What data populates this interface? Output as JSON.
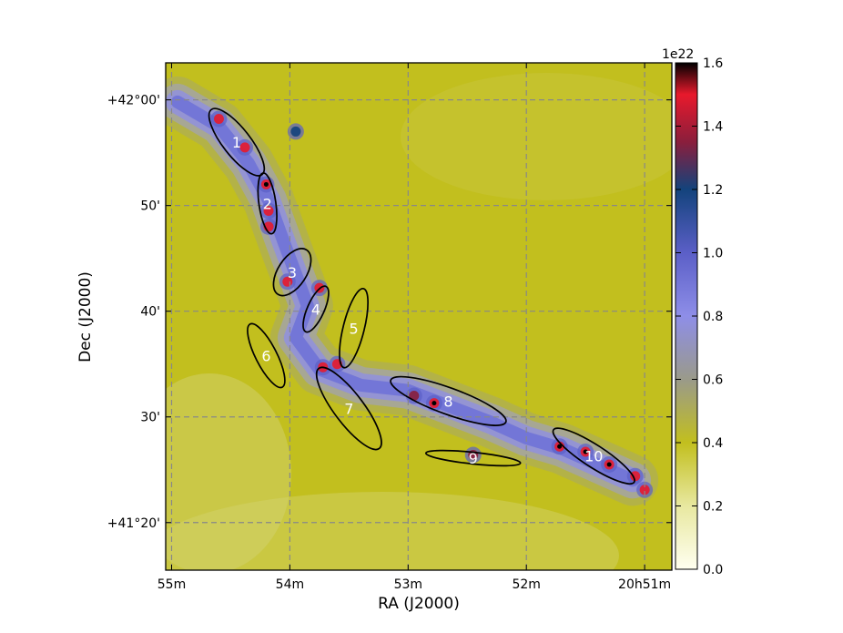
{
  "chart_data": {
    "type": "heatmap",
    "title": "",
    "xlabel": "RA (J2000)",
    "ylabel": "Dec (J2000)",
    "x_ticks": [
      "55m",
      "54m",
      "53m",
      "52m",
      "20h51m"
    ],
    "y_ticks": [
      "+41°20'",
      "30'",
      "40'",
      "50'",
      "+42°00'"
    ],
    "x_tick_values_min": [
      55,
      54,
      53,
      52,
      51
    ],
    "y_tick_values_arcmin": [
      20,
      30,
      40,
      50,
      60
    ],
    "xlim_min": [
      55.05,
      50.77
    ],
    "ylim_arcmin": [
      15.5,
      63.5
    ],
    "grid": true,
    "colorbar": {
      "label": "1e22",
      "vmin": 0.0,
      "vmax": 1.6,
      "ticks": [
        "0.0",
        "0.2",
        "0.4",
        "0.6",
        "0.8",
        "1.0",
        "1.2",
        "1.4",
        "1.6"
      ],
      "tick_values": [
        0.0,
        0.2,
        0.4,
        0.6,
        0.8,
        1.0,
        1.2,
        1.4,
        1.6
      ],
      "stops": [
        {
          "v": 0.0,
          "color": "#fffff0"
        },
        {
          "v": 0.2,
          "color": "#e8e8a0"
        },
        {
          "v": 0.4,
          "color": "#c2bf1e"
        },
        {
          "v": 0.6,
          "color": "#9a9a8a"
        },
        {
          "v": 0.8,
          "color": "#8e8ee8"
        },
        {
          "v": 1.0,
          "color": "#5b5fc7"
        },
        {
          "v": 1.2,
          "color": "#13437c"
        },
        {
          "v": 1.35,
          "color": "#8a1e3c"
        },
        {
          "v": 1.5,
          "color": "#e8192c"
        },
        {
          "v": 1.6,
          "color": "#000000"
        }
      ]
    },
    "regions": [
      {
        "label": "1",
        "ra_min": 54.45,
        "dec_arcmin": 56.0,
        "major_arcmin": 7.8,
        "minor_arcmin": 2.6,
        "pa_deg": 38
      },
      {
        "label": "2",
        "ra_min": 54.19,
        "dec_arcmin": 50.2,
        "major_arcmin": 5.8,
        "minor_arcmin": 1.6,
        "pa_deg": 8
      },
      {
        "label": "3",
        "ra_min": 53.98,
        "dec_arcmin": 43.7,
        "major_arcmin": 5.0,
        "minor_arcmin": 2.7,
        "pa_deg": -33
      },
      {
        "label": "4",
        "ra_min": 53.78,
        "dec_arcmin": 40.2,
        "major_arcmin": 4.7,
        "minor_arcmin": 1.6,
        "pa_deg": -24
      },
      {
        "label": "5",
        "ra_min": 53.46,
        "dec_arcmin": 38.4,
        "major_arcmin": 7.7,
        "minor_arcmin": 2.0,
        "pa_deg": -14
      },
      {
        "label": "6",
        "ra_min": 54.2,
        "dec_arcmin": 35.8,
        "major_arcmin": 6.7,
        "minor_arcmin": 2.0,
        "pa_deg": 27
      },
      {
        "label": "7",
        "ra_min": 53.5,
        "dec_arcmin": 30.8,
        "major_arcmin": 9.5,
        "minor_arcmin": 2.8,
        "pa_deg": 37
      },
      {
        "label": "8",
        "ra_min": 52.66,
        "dec_arcmin": 31.5,
        "major_arcmin": 11.6,
        "minor_arcmin": 2.5,
        "pa_deg": 70
      },
      {
        "label": "9",
        "ra_min": 52.45,
        "dec_arcmin": 26.1,
        "major_arcmin": 9.0,
        "minor_arcmin": 1.1,
        "pa_deg": 84
      },
      {
        "label": "10",
        "ra_min": 51.43,
        "dec_arcmin": 26.3,
        "major_arcmin": 9.1,
        "minor_arcmin": 2.1,
        "pa_deg": 57
      }
    ],
    "filament_spine_ra_dec": [
      [
        54.95,
        59.8
      ],
      [
        54.6,
        57.5
      ],
      [
        54.35,
        54.0
      ],
      [
        54.18,
        50.5
      ],
      [
        54.05,
        46.5
      ],
      [
        53.95,
        43.5
      ],
      [
        53.85,
        40.5
      ],
      [
        53.95,
        37.5
      ],
      [
        53.75,
        34.5
      ],
      [
        53.4,
        33.0
      ],
      [
        53.0,
        32.5
      ],
      [
        52.65,
        31.0
      ],
      [
        52.3,
        29.5
      ],
      [
        52.0,
        28.0
      ],
      [
        51.7,
        27.0
      ],
      [
        51.4,
        25.5
      ],
      [
        51.1,
        24.0
      ]
    ],
    "dense_cores_ra_dec_value": [
      [
        54.6,
        58.2,
        1.45
      ],
      [
        54.38,
        55.5,
        1.5
      ],
      [
        54.2,
        52.0,
        1.62
      ],
      [
        54.18,
        49.5,
        1.52
      ],
      [
        54.18,
        48.0,
        1.45
      ],
      [
        54.02,
        42.8,
        1.58
      ],
      [
        53.75,
        42.2,
        1.4
      ],
      [
        53.72,
        34.7,
        1.55
      ],
      [
        53.6,
        35.0,
        1.45
      ],
      [
        52.78,
        31.3,
        1.63
      ],
      [
        52.95,
        32.0,
        1.35
      ],
      [
        52.45,
        26.4,
        1.35
      ],
      [
        51.72,
        27.2,
        1.62
      ],
      [
        51.5,
        26.7,
        1.62
      ],
      [
        51.3,
        25.5,
        1.63
      ],
      [
        51.08,
        24.4,
        1.55
      ],
      [
        51.0,
        23.1,
        1.45
      ],
      [
        53.95,
        57.0,
        1.1
      ]
    ]
  }
}
